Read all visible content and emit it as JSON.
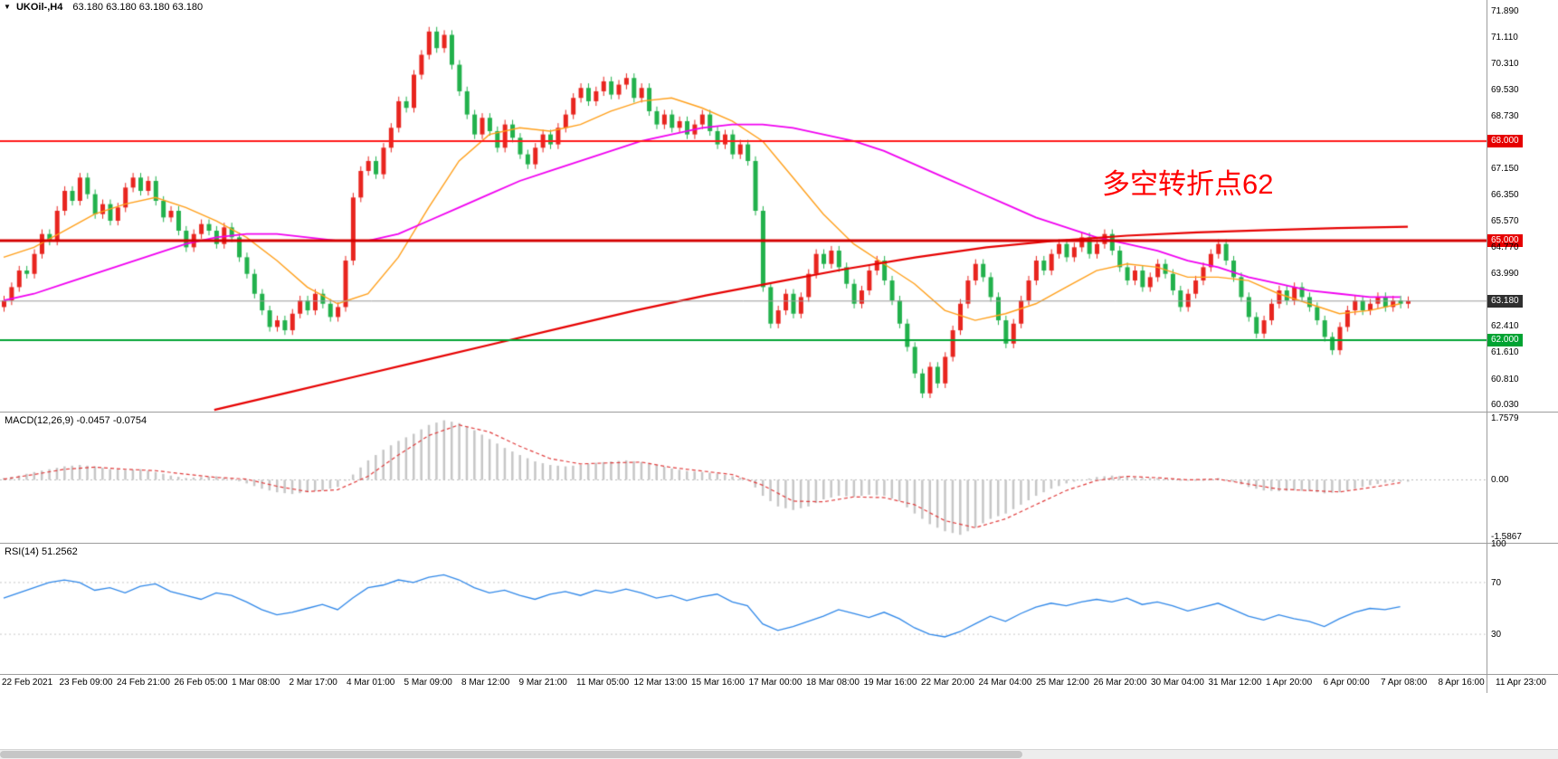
{
  "symbol_bar": {
    "marker": "▼",
    "title": "UKOil-,H4",
    "values": "63.180 63.180 63.180 63.180"
  },
  "indicators": {
    "macd_label": "MACD(12,26,9) -0.0457 -0.0754",
    "rsi_label": "RSI(14) 51.2562"
  },
  "annotation": {
    "text": "多空转折点62",
    "color": "#ff0000"
  },
  "colors": {
    "bull": "#e8251f",
    "bear": "#22b14c",
    "bid_line": "#9a9a9a",
    "separator": "#9c9c9c",
    "axis_text": "#000000"
  },
  "chart_data": {
    "type": "candlestick-with-indicators",
    "title": "UKOil- H4",
    "panels": [
      {
        "type": "candlestick",
        "name": "price",
        "ylim": [
          59.85,
          72.25
        ],
        "wick": 0.14,
        "closes": [
          63.2,
          63.6,
          64.1,
          64.0,
          64.6,
          65.2,
          65.0,
          65.9,
          66.5,
          66.2,
          66.9,
          66.4,
          65.8,
          66.1,
          65.6,
          66.0,
          66.6,
          66.9,
          66.5,
          66.8,
          66.2,
          65.7,
          65.9,
          65.3,
          64.8,
          65.2,
          65.5,
          65.3,
          64.9,
          65.4,
          65.1,
          64.5,
          64.0,
          63.4,
          62.9,
          62.4,
          62.6,
          62.3,
          62.8,
          63.2,
          62.9,
          63.4,
          63.1,
          62.7,
          63.0,
          64.4,
          66.3,
          67.1,
          67.4,
          67.0,
          67.8,
          68.4,
          69.2,
          69.0,
          70.0,
          70.6,
          71.3,
          70.8,
          71.2,
          70.3,
          69.5,
          68.8,
          68.2,
          68.7,
          68.3,
          67.8,
          68.5,
          68.1,
          67.6,
          67.3,
          67.8,
          68.2,
          67.9,
          68.4,
          68.8,
          69.3,
          69.6,
          69.2,
          69.5,
          69.8,
          69.4,
          69.7,
          69.9,
          69.3,
          69.6,
          68.9,
          68.5,
          68.8,
          68.4,
          68.6,
          68.2,
          68.5,
          68.8,
          68.3,
          67.9,
          68.2,
          67.6,
          67.9,
          67.4,
          65.9,
          63.6,
          62.5,
          62.9,
          63.4,
          62.8,
          63.3,
          64.0,
          64.6,
          64.3,
          64.7,
          64.2,
          63.7,
          63.1,
          63.5,
          64.1,
          64.4,
          63.8,
          63.2,
          62.5,
          61.8,
          61.0,
          60.4,
          61.2,
          60.7,
          61.5,
          62.3,
          63.1,
          63.8,
          64.3,
          63.9,
          63.3,
          62.6,
          61.9,
          62.5,
          63.2,
          63.8,
          64.4,
          64.1,
          64.6,
          64.9,
          64.5,
          64.8,
          65.1,
          64.6,
          64.9,
          65.2,
          64.7,
          64.2,
          63.8,
          64.1,
          63.6,
          63.9,
          64.3,
          64.0,
          63.5,
          63.0,
          63.4,
          63.8,
          64.2,
          64.6,
          64.9,
          64.4,
          63.9,
          63.3,
          62.7,
          62.2,
          62.6,
          63.1,
          63.5,
          63.2,
          63.6,
          63.3,
          63.0,
          62.6,
          62.1,
          61.7,
          62.4,
          62.9,
          63.2,
          62.9,
          63.1,
          63.3,
          63.0,
          63.2,
          63.1,
          63.18
        ],
        "overlays": [
          {
            "name": "ma-fast-orange",
            "color": "#ff9f1a",
            "width": 1.4,
            "stride": 4,
            "values": [
              64.5,
              64.8,
              65.3,
              65.8,
              66.1,
              66.3,
              66.0,
              65.6,
              65.1,
              64.4,
              63.6,
              63.1,
              63.4,
              64.5,
              66.0,
              67.4,
              68.2,
              68.4,
              68.3,
              68.5,
              68.9,
              69.2,
              69.3,
              69.0,
              68.6,
              68.0,
              66.9,
              65.8,
              64.9,
              64.3,
              63.7,
              62.9,
              62.6,
              62.8,
              63.1,
              63.6,
              64.1,
              64.3,
              64.2,
              63.9,
              63.9,
              63.8,
              63.4,
              63.1,
              62.8,
              62.9,
              63.1
            ]
          },
          {
            "name": "ma-mid-magenta",
            "color": "#f000f0",
            "width": 1.8,
            "stride": 4,
            "values": [
              63.2,
              63.4,
              63.7,
              64.0,
              64.3,
              64.6,
              64.9,
              65.1,
              65.2,
              65.2,
              65.1,
              65.0,
              65.0,
              65.2,
              65.6,
              66.0,
              66.4,
              66.8,
              67.1,
              67.4,
              67.7,
              68.0,
              68.2,
              68.4,
              68.5,
              68.5,
              68.4,
              68.2,
              68.0,
              67.7,
              67.3,
              66.9,
              66.5,
              66.1,
              65.7,
              65.4,
              65.1,
              64.9,
              64.7,
              64.4,
              64.2,
              63.9,
              63.7,
              63.5,
              63.4,
              63.3,
              63.3
            ]
          },
          {
            "name": "ma-slow-red",
            "color": "#e60000",
            "width": 2.2,
            "points": [
              [
                0.15,
                59.9
              ],
              [
                0.2,
                60.4
              ],
              [
                0.25,
                60.9
              ],
              [
                0.3,
                61.4
              ],
              [
                0.35,
                61.9
              ],
              [
                0.4,
                62.4
              ],
              [
                0.45,
                62.9
              ],
              [
                0.5,
                63.35
              ],
              [
                0.55,
                63.75
              ],
              [
                0.6,
                64.15
              ],
              [
                0.65,
                64.5
              ],
              [
                0.7,
                64.8
              ],
              [
                0.75,
                65.0
              ],
              [
                0.8,
                65.15
              ],
              [
                0.85,
                65.25
              ],
              [
                0.9,
                65.32
              ],
              [
                0.95,
                65.38
              ],
              [
                1.0,
                65.42
              ]
            ]
          }
        ],
        "hlines": [
          {
            "price": 68.0,
            "color": "#ff1a1a",
            "width": 2
          },
          {
            "price": 65.0,
            "color": "#d40000",
            "width": 3
          },
          {
            "price": 62.0,
            "color": "#00a332",
            "width": 2
          },
          {
            "price": 63.18,
            "color": "#9a9a9a",
            "width": 1
          }
        ],
        "price_labels": [
          {
            "text": "71.890",
            "price": 71.89,
            "style": "plain"
          },
          {
            "text": "71.110",
            "price": 71.11,
            "style": "plain"
          },
          {
            "text": "70.310",
            "price": 70.31,
            "style": "plain"
          },
          {
            "text": "69.530",
            "price": 69.53,
            "style": "plain"
          },
          {
            "text": "68.730",
            "price": 68.73,
            "style": "plain"
          },
          {
            "text": "68.000",
            "price": 68.0,
            "style": "red"
          },
          {
            "text": "67.150",
            "price": 67.15,
            "style": "plain"
          },
          {
            "text": "66.350",
            "price": 66.35,
            "style": "plain"
          },
          {
            "text": "65.570",
            "price": 65.57,
            "style": "plain"
          },
          {
            "text": "65.000",
            "price": 65.0,
            "style": "red"
          },
          {
            "text": "64.770",
            "price": 64.77,
            "style": "plain"
          },
          {
            "text": "63.990",
            "price": 63.99,
            "style": "plain"
          },
          {
            "text": "63.180",
            "price": 63.18,
            "style": "current"
          },
          {
            "text": "62.410",
            "price": 62.41,
            "style": "plain"
          },
          {
            "text": "62.000",
            "price": 62.0,
            "style": "green"
          },
          {
            "text": "61.610",
            "price": 61.61,
            "style": "plain"
          },
          {
            "text": "60.810",
            "price": 60.81,
            "style": "plain"
          },
          {
            "text": "60.030",
            "price": 60.03,
            "style": "plain"
          }
        ]
      },
      {
        "type": "bar",
        "name": "MACD(12,26,9)",
        "ylim": [
          -1.75,
          1.9
        ],
        "hist_color": "#c6c6c6",
        "signal_color": "#e03c3c",
        "hist_stride": 2,
        "hist": [
          0.05,
          0.12,
          0.22,
          0.3,
          0.38,
          0.42,
          0.38,
          0.3,
          0.28,
          0.3,
          0.22,
          0.12,
          0.05,
          0.08,
          0.1,
          0.02,
          -0.1,
          -0.25,
          -0.35,
          -0.4,
          -0.35,
          -0.3,
          -0.2,
          0.15,
          0.55,
          0.85,
          1.1,
          1.3,
          1.55,
          1.68,
          1.6,
          1.4,
          1.15,
          0.9,
          0.7,
          0.52,
          0.42,
          0.38,
          0.42,
          0.48,
          0.52,
          0.55,
          0.5,
          0.42,
          0.32,
          0.25,
          0.22,
          0.18,
          0.1,
          0.02,
          -0.45,
          -0.75,
          -0.85,
          -0.75,
          -0.55,
          -0.45,
          -0.48,
          -0.42,
          -0.45,
          -0.6,
          -0.95,
          -1.25,
          -1.45,
          -1.55,
          -1.35,
          -1.1,
          -0.95,
          -0.7,
          -0.45,
          -0.25,
          -0.1,
          0.0,
          0.08,
          0.12,
          0.1,
          0.05,
          0.05,
          0.02,
          -0.02,
          0.0,
          0.05,
          -0.05,
          -0.2,
          -0.3,
          -0.32,
          -0.3,
          -0.32,
          -0.38,
          -0.35,
          -0.25,
          -0.15,
          -0.08,
          -0.05
        ],
        "signal_stride": 4,
        "signal": [
          0.02,
          0.15,
          0.3,
          0.36,
          0.3,
          0.26,
          0.16,
          0.07,
          0.02,
          -0.18,
          -0.33,
          -0.28,
          0.1,
          0.7,
          1.25,
          1.55,
          1.35,
          0.95,
          0.6,
          0.45,
          0.48,
          0.5,
          0.35,
          0.25,
          0.15,
          -0.15,
          -0.6,
          -0.62,
          -0.48,
          -0.5,
          -0.7,
          -1.15,
          -1.35,
          -1.1,
          -0.7,
          -0.3,
          -0.02,
          0.1,
          0.06,
          0.0,
          0.02,
          -0.12,
          -0.26,
          -0.3,
          -0.34,
          -0.22,
          -0.08
        ],
        "ticks": [
          {
            "text": "1.7579",
            "v": 1.7579
          },
          {
            "text": "0.00",
            "v": 0
          },
          {
            "text": "-1.5867",
            "v": -1.5867
          }
        ]
      },
      {
        "type": "line",
        "name": "RSI(14)",
        "ylim": [
          0,
          100
        ],
        "color": "#2f87e8",
        "levels": [
          70,
          30
        ],
        "stride": 2,
        "values": [
          58,
          62,
          66,
          70,
          72,
          70,
          64,
          66,
          62,
          67,
          69,
          63,
          60,
          57,
          62,
          60,
          55,
          49,
          45,
          47,
          50,
          53,
          49,
          58,
          66,
          68,
          72,
          70,
          74,
          76,
          72,
          66,
          62,
          64,
          60,
          57,
          61,
          63,
          60,
          64,
          62,
          65,
          62,
          58,
          60,
          56,
          59,
          61,
          55,
          52,
          38,
          33,
          36,
          40,
          44,
          49,
          46,
          43,
          47,
          42,
          35,
          30,
          28,
          32,
          38,
          44,
          40,
          46,
          51,
          54,
          52,
          55,
          57,
          55,
          58,
          53,
          55,
          52,
          48,
          51,
          54,
          49,
          44,
          41,
          45,
          42,
          40,
          36,
          42,
          47,
          50,
          49,
          51.26
        ],
        "ticks": [
          {
            "text": "100",
            "v": 100
          },
          {
            "text": "70",
            "v": 70
          },
          {
            "text": "30",
            "v": 30
          }
        ]
      }
    ],
    "time_labels": [
      "22 Feb 2021",
      "23 Feb 09:00",
      "24 Feb 21:00",
      "26 Feb 05:00",
      "1 Mar 08:00",
      "2 Mar 17:00",
      "4 Mar 01:00",
      "5 Mar 09:00",
      "8 Mar 12:00",
      "9 Mar 21:00",
      "11 Mar 05:00",
      "12 Mar 13:00",
      "15 Mar 16:00",
      "17 Mar 00:00",
      "18 Mar 08:00",
      "19 Mar 16:00",
      "22 Mar 20:00",
      "24 Mar 04:00",
      "25 Mar 12:00",
      "26 Mar 20:00",
      "30 Mar 04:00",
      "31 Mar 12:00",
      "1 Apr 20:00",
      "6 Apr 00:00",
      "7 Apr 08:00",
      "8 Apr 16:00",
      "11 Apr 23:00"
    ]
  }
}
